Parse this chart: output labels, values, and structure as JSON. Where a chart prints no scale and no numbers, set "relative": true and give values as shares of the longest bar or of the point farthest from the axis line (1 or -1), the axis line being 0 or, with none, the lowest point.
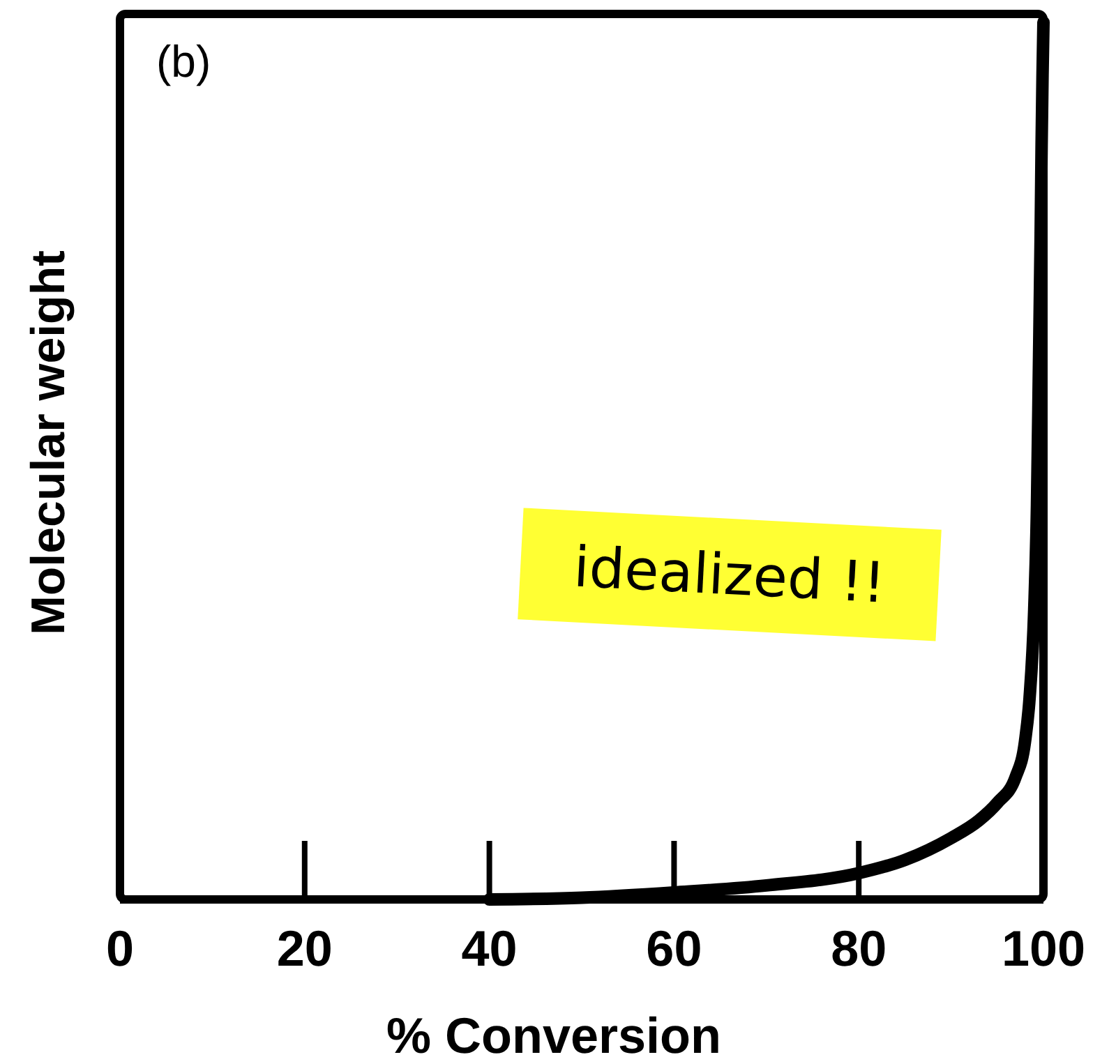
{
  "chart_data": {
    "type": "line",
    "xlabel": "% Conversion",
    "ylabel": "Molecular weight",
    "relative": true,
    "x": [
      40,
      50,
      60,
      70,
      80,
      85,
      90,
      93,
      95,
      97,
      98,
      98.5,
      99,
      99.3,
      99.5,
      99.7,
      99.8,
      99.9,
      100
    ],
    "series": [
      {
        "color": "#000000",
        "values": [
          0,
          0.002,
          0.008,
          0.016,
          0.03,
          0.045,
          0.07,
          0.09,
          0.11,
          0.14,
          0.18,
          0.23,
          0.33,
          0.45,
          0.6,
          0.76,
          0.86,
          0.94,
          1
        ]
      }
    ],
    "xlim": [
      0,
      100
    ],
    "xticks": [
      0,
      20,
      40,
      60,
      80,
      100
    ],
    "grid": false,
    "marker": "none",
    "line_style": "solid",
    "annotations": [
      "(b)",
      "idealized !!"
    ]
  }
}
